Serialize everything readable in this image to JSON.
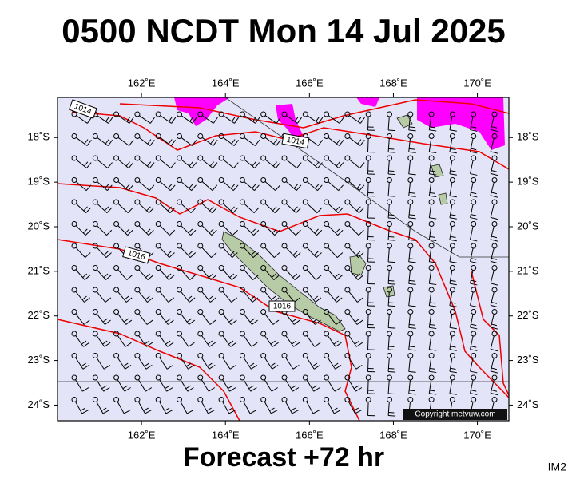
{
  "header": {
    "title": "0500 NCDT Mon 14 Jul 2025"
  },
  "footer": {
    "caption": "Forecast +72 hr",
    "code": "IM2"
  },
  "map": {
    "xlim": [
      160,
      170.75
    ],
    "ylim": [
      -17.1,
      -24.35
    ],
    "lon_ticks": [
      {
        "value": 162,
        "label": "162˚E"
      },
      {
        "value": 164,
        "label": "164˚E"
      },
      {
        "value": 166,
        "label": "166˚E"
      },
      {
        "value": 168,
        "label": "168˚E"
      },
      {
        "value": 170,
        "label": "170˚E"
      }
    ],
    "lat_ticks": [
      {
        "value": -18,
        "label": "18˚S"
      },
      {
        "value": -19,
        "label": "19˚S"
      },
      {
        "value": -20,
        "label": "20˚S"
      },
      {
        "value": -21,
        "label": "21˚S"
      },
      {
        "value": -22,
        "label": "22˚S"
      },
      {
        "value": -23,
        "label": "23˚S"
      },
      {
        "value": -24,
        "label": "24˚S"
      }
    ],
    "isobar_labels": [
      "1014",
      "1014",
      "1016",
      "1016"
    ],
    "copyright": "Copyright metvuw.com"
  }
}
